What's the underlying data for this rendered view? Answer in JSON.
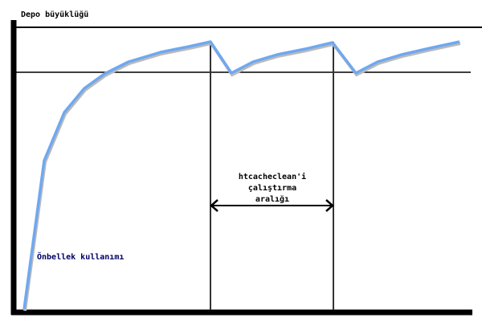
{
  "y_axis_label": "Depo büyüklüğü",
  "interval_label": [
    "htcacheclean'i",
    "çalıştırma",
    "aralığı"
  ],
  "curve_label": "Önbellek kullanımı",
  "colors": {
    "curve": "#6fa8f0",
    "axes": "#000000",
    "curve_label": "#000066"
  }
}
